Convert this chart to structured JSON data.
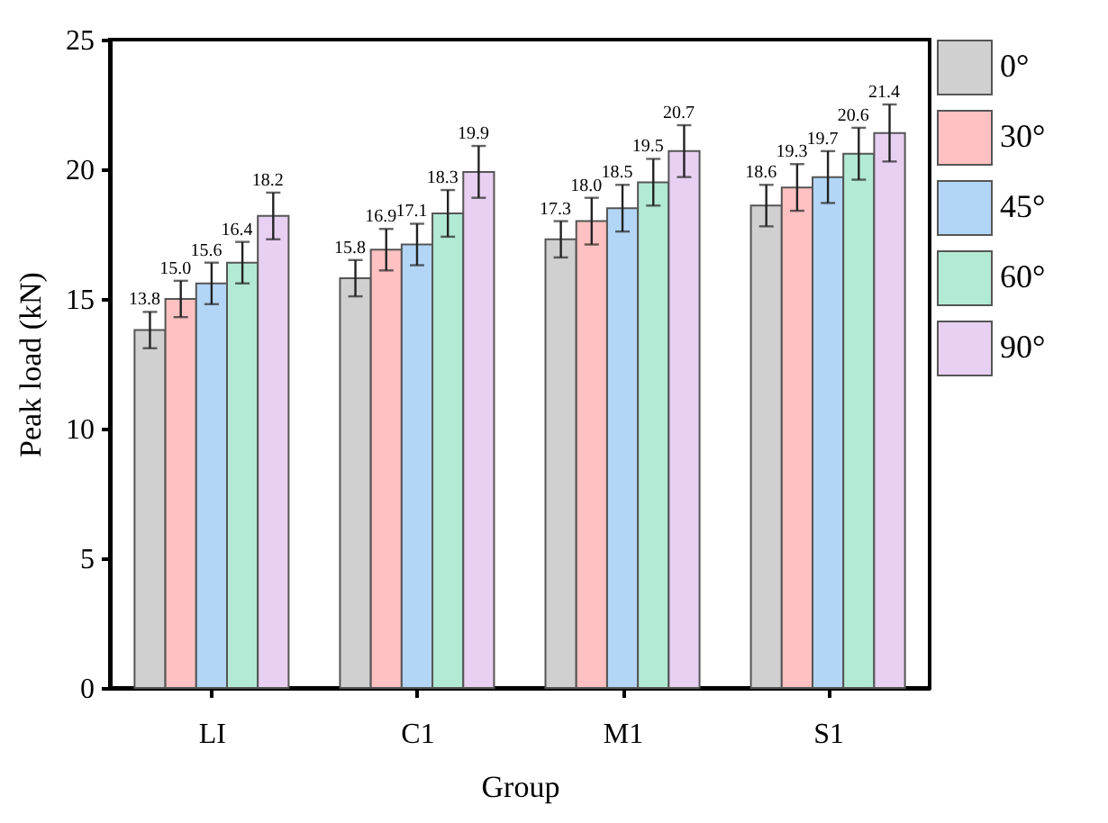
{
  "chart_data": {
    "type": "bar",
    "xlabel": "Group",
    "ylabel": "Peak load (kN)",
    "categories": [
      "LI",
      "C1",
      "M1",
      "S1"
    ],
    "series": [
      {
        "name": "0°",
        "color": "#d0d0d0",
        "values": [
          13.8,
          15.8,
          17.3,
          18.6
        ],
        "errors": [
          0.7,
          0.7,
          0.7,
          0.8
        ],
        "value_labels": [
          "13.8",
          "15.8",
          "17.3",
          "18.6"
        ]
      },
      {
        "name": "30°",
        "color": "#ffc1c1",
        "values": [
          15.0,
          16.9,
          18.0,
          19.3
        ],
        "errors": [
          0.7,
          0.8,
          0.9,
          0.9
        ],
        "value_labels": [
          "15.0",
          "16.9",
          "18.0",
          "19.3"
        ]
      },
      {
        "name": "45°",
        "color": "#b3d6f7",
        "values": [
          15.6,
          17.1,
          18.5,
          19.7
        ],
        "errors": [
          0.8,
          0.8,
          0.9,
          1.0
        ],
        "value_labels": [
          "15.6",
          "17.1",
          "18.5",
          "19.7"
        ]
      },
      {
        "name": "60°",
        "color": "#b3ead5",
        "values": [
          16.4,
          18.3,
          19.5,
          20.6
        ],
        "errors": [
          0.8,
          0.9,
          0.9,
          1.0
        ],
        "value_labels": [
          "16.4",
          "18.3",
          "19.5",
          "20.6"
        ]
      },
      {
        "name": "90°",
        "color": "#e8d0f3",
        "values": [
          18.2,
          19.9,
          20.7,
          21.4
        ],
        "errors": [
          0.9,
          1.0,
          1.0,
          1.1
        ],
        "value_labels": [
          "18.2",
          "19.9",
          "20.7",
          "21.4"
        ]
      }
    ],
    "ylim": [
      0,
      25
    ],
    "yticks": [
      0,
      5,
      10,
      15,
      20,
      25
    ],
    "legend": "top right"
  }
}
